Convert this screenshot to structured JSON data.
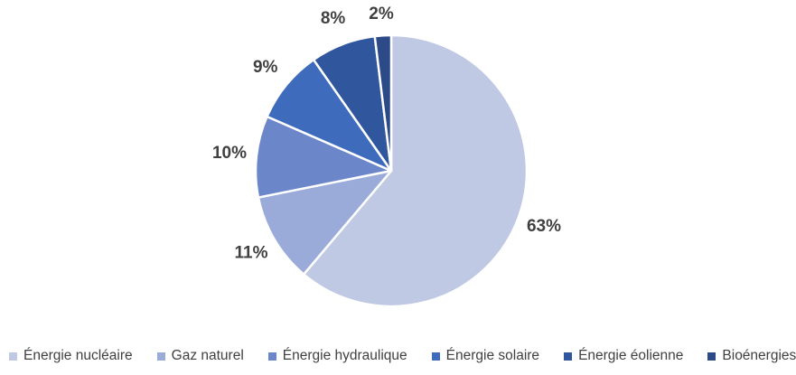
{
  "chart_data": {
    "type": "pie",
    "title": "",
    "categories": [
      "Énergie nucléaire",
      "Gaz naturel",
      "Énergie hydraulique",
      "Énergie solaire",
      "Énergie éolienne",
      "Bioénergies"
    ],
    "values": [
      63,
      11,
      10,
      9,
      8,
      2
    ],
    "data_labels": [
      "63%",
      "11%",
      "10%",
      "9%",
      "8%",
      "2%"
    ],
    "colors": [
      "#bfc9e4",
      "#9aaad9",
      "#6c86ca",
      "#3e6bbb",
      "#30569e",
      "#2b4a87"
    ],
    "data_label_color": "#404040",
    "slice_border_color": "#ffffff",
    "start_angle_deg": 0,
    "direction": "clockwise",
    "legend_position": "bottom",
    "grid": false
  }
}
